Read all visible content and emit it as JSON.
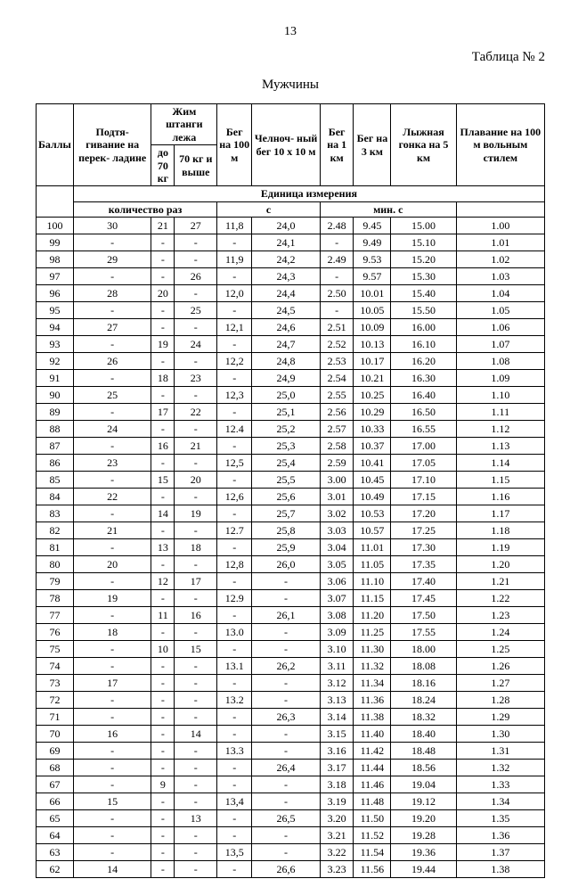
{
  "page_number": "13",
  "table_label": "Таблица № 2",
  "title": "Мужчины",
  "headers": {
    "points": "Баллы",
    "pullups": "Подтя-\nгивание на перек-\nладине",
    "bench": "Жим штанги лежа",
    "bench_sub_a": "до 70 кг",
    "bench_sub_b": "70 кг и выше",
    "run100": "Бег на 100 м",
    "shuttle": "Челноч-\nный бег 10 х 10 м",
    "run1": "Бег на 1 км",
    "run3": "Бег на 3 км",
    "ski5": "Лыжная гонка на 5 км",
    "swim": "Плавание на 100 м вольным стилем",
    "unit_row": "Единица измерения",
    "unit_count": "количество раз",
    "unit_sec": "с",
    "unit_min": "мин. с"
  },
  "rows": [
    [
      "100",
      "30",
      "21",
      "27",
      "11,8",
      "24,0",
      "2.48",
      "9.45",
      "15.00",
      "1.00"
    ],
    [
      "99",
      "-",
      "-",
      "-",
      "-",
      "24,1",
      "-",
      "9.49",
      "15.10",
      "1.01"
    ],
    [
      "98",
      "29",
      "-",
      "-",
      "11,9",
      "24,2",
      "2.49",
      "9.53",
      "15.20",
      "1.02"
    ],
    [
      "97",
      "-",
      "-",
      "26",
      "-",
      "24,3",
      "-",
      "9.57",
      "15.30",
      "1.03"
    ],
    [
      "96",
      "28",
      "20",
      "-",
      "12,0",
      "24,4",
      "2.50",
      "10.01",
      "15.40",
      "1.04"
    ],
    [
      "95",
      "-",
      "-",
      "25",
      "-",
      "24,5",
      "-",
      "10.05",
      "15.50",
      "1.05"
    ],
    [
      "94",
      "27",
      "-",
      "-",
      "12,1",
      "24,6",
      "2.51",
      "10.09",
      "16.00",
      "1.06"
    ],
    [
      "93",
      "-",
      "19",
      "24",
      "-",
      "24,7",
      "2.52",
      "10.13",
      "16.10",
      "1.07"
    ],
    [
      "92",
      "26",
      "-",
      "-",
      "12,2",
      "24,8",
      "2.53",
      "10.17",
      "16.20",
      "1.08"
    ],
    [
      "91",
      "-",
      "18",
      "23",
      "-",
      "24,9",
      "2.54",
      "10.21",
      "16.30",
      "1.09"
    ],
    [
      "90",
      "25",
      "-",
      "-",
      "12,3",
      "25,0",
      "2.55",
      "10.25",
      "16.40",
      "1.10"
    ],
    [
      "89",
      "-",
      "17",
      "22",
      "-",
      "25,1",
      "2.56",
      "10.29",
      "16.50",
      "1.11"
    ],
    [
      "88",
      "24",
      "-",
      "-",
      "12.4",
      "25,2",
      "2.57",
      "10.33",
      "16.55",
      "1.12"
    ],
    [
      "87",
      "-",
      "16",
      "21",
      "-",
      "25,3",
      "2.58",
      "10.37",
      "17.00",
      "1.13"
    ],
    [
      "86",
      "23",
      "-",
      "-",
      "12,5",
      "25,4",
      "2.59",
      "10.41",
      "17.05",
      "1.14"
    ],
    [
      "85",
      "-",
      "15",
      "20",
      "-",
      "25,5",
      "3.00",
      "10.45",
      "17.10",
      "1.15"
    ],
    [
      "84",
      "22",
      "-",
      "-",
      "12,6",
      "25,6",
      "3.01",
      "10.49",
      "17.15",
      "1.16"
    ],
    [
      "83",
      "-",
      "14",
      "19",
      "-",
      "25,7",
      "3.02",
      "10.53",
      "17.20",
      "1.17"
    ],
    [
      "82",
      "21",
      "-",
      "-",
      "12.7",
      "25,8",
      "3.03",
      "10.57",
      "17.25",
      "1.18"
    ],
    [
      "81",
      "-",
      "13",
      "18",
      "-",
      "25,9",
      "3.04",
      "11.01",
      "17.30",
      "1.19"
    ],
    [
      "80",
      "20",
      "-",
      "-",
      "12,8",
      "26,0",
      "3.05",
      "11.05",
      "17.35",
      "1.20"
    ],
    [
      "79",
      "-",
      "12",
      "17",
      "-",
      "-",
      "3.06",
      "11.10",
      "17.40",
      "1.21"
    ],
    [
      "78",
      "19",
      "-",
      "-",
      "12.9",
      "-",
      "3.07",
      "11.15",
      "17.45",
      "1.22"
    ],
    [
      "77",
      "-",
      "11",
      "16",
      "-",
      "26,1",
      "3.08",
      "11.20",
      "17.50",
      "1.23"
    ],
    [
      "76",
      "18",
      "-",
      "-",
      "13.0",
      "-",
      "3.09",
      "11.25",
      "17.55",
      "1.24"
    ],
    [
      "75",
      "-",
      "10",
      "15",
      "-",
      "-",
      "3.10",
      "11.30",
      "18.00",
      "1.25"
    ],
    [
      "74",
      "-",
      "-",
      "-",
      "13.1",
      "26,2",
      "3.11",
      "11.32",
      "18.08",
      "1.26"
    ],
    [
      "73",
      "17",
      "-",
      "-",
      "-",
      "-",
      "3.12",
      "11.34",
      "18.16",
      "1.27"
    ],
    [
      "72",
      "-",
      "-",
      "-",
      "13.2",
      "-",
      "3.13",
      "11.36",
      "18.24",
      "1.28"
    ],
    [
      "71",
      "-",
      "-",
      "-",
      "-",
      "26,3",
      "3.14",
      "11.38",
      "18.32",
      "1.29"
    ],
    [
      "70",
      "16",
      "-",
      "14",
      "-",
      "-",
      "3.15",
      "11.40",
      "18.40",
      "1.30"
    ],
    [
      "69",
      "-",
      "-",
      "-",
      "13.3",
      "-",
      "3.16",
      "11.42",
      "18.48",
      "1.31"
    ],
    [
      "68",
      "-",
      "-",
      "-",
      "-",
      "26,4",
      "3.17",
      "11.44",
      "18.56",
      "1.32"
    ],
    [
      "67",
      "-",
      "9",
      "-",
      "-",
      "-",
      "3.18",
      "11.46",
      "19.04",
      "1.33"
    ],
    [
      "66",
      "15",
      "-",
      "-",
      "13,4",
      "-",
      "3.19",
      "11.48",
      "19.12",
      "1.34"
    ],
    [
      "65",
      "-",
      "-",
      "13",
      "-",
      "26,5",
      "3.20",
      "11.50",
      "19.20",
      "1.35"
    ],
    [
      "64",
      "-",
      "-",
      "-",
      "-",
      "-",
      "3.21",
      "11.52",
      "19.28",
      "1.36"
    ],
    [
      "63",
      "-",
      "-",
      "-",
      "13,5",
      "-",
      "3.22",
      "11.54",
      "19.36",
      "1.37"
    ],
    [
      "62",
      "14",
      "-",
      "-",
      "-",
      "26,6",
      "3.23",
      "11.56",
      "19.44",
      "1.38"
    ]
  ]
}
